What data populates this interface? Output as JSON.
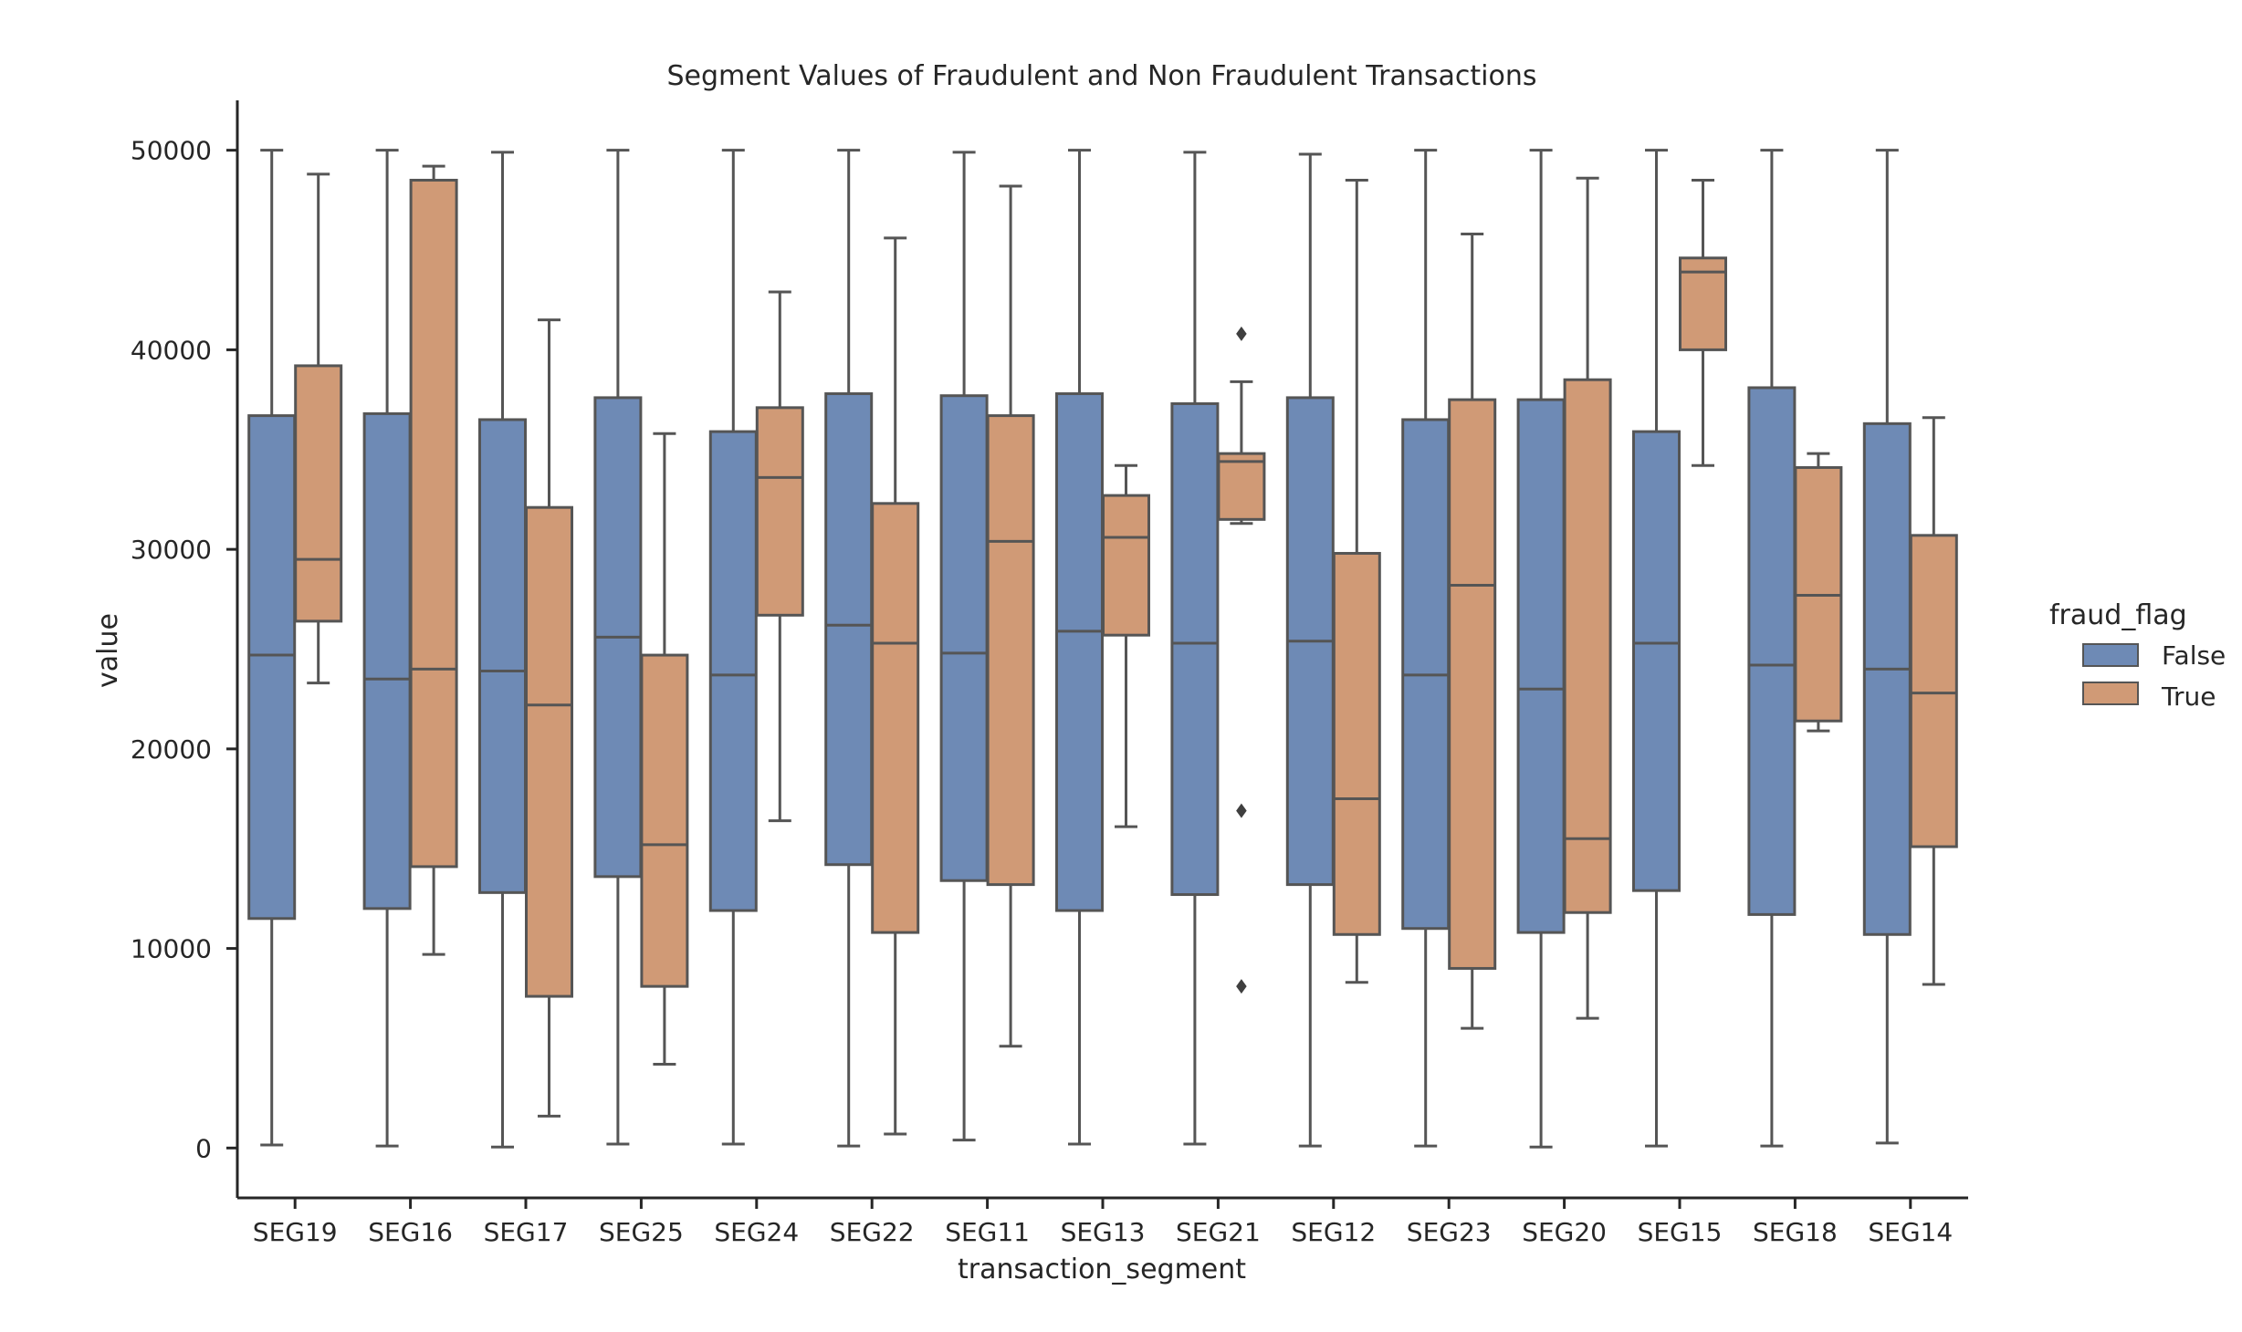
{
  "chart_data": {
    "type": "box",
    "title": "Segment Values of Fraudulent and Non Fraudulent Transactions",
    "xlabel": "transaction_segment",
    "ylabel": "value",
    "ylim": [
      -2500,
      52500
    ],
    "yticks": [
      0,
      10000,
      20000,
      30000,
      40000,
      50000
    ],
    "ytick_labels": [
      "0",
      "10000",
      "20000",
      "30000",
      "40000",
      "50000"
    ],
    "grid": false,
    "legend": {
      "title": "fraud_flag",
      "placement": "center-right"
    },
    "categories": [
      "SEG19",
      "SEG16",
      "SEG17",
      "SEG25",
      "SEG24",
      "SEG22",
      "SEG11",
      "SEG13",
      "SEG21",
      "SEG12",
      "SEG23",
      "SEG20",
      "SEG15",
      "SEG18",
      "SEG14"
    ],
    "series": [
      {
        "name": "False",
        "color": "#6e8ab5",
        "boxes": [
          {
            "min": 150,
            "q1": 11500,
            "median": 24700,
            "q3": 36700,
            "max": 50000,
            "outliers": []
          },
          {
            "min": 100,
            "q1": 12000,
            "median": 23500,
            "q3": 36800,
            "max": 50000,
            "outliers": []
          },
          {
            "min": 50,
            "q1": 12800,
            "median": 23900,
            "q3": 36500,
            "max": 49900,
            "outliers": []
          },
          {
            "min": 200,
            "q1": 13600,
            "median": 25600,
            "q3": 37600,
            "max": 50000,
            "outliers": []
          },
          {
            "min": 200,
            "q1": 11900,
            "median": 23700,
            "q3": 35900,
            "max": 50000,
            "outliers": []
          },
          {
            "min": 100,
            "q1": 14200,
            "median": 26200,
            "q3": 37800,
            "max": 50000,
            "outliers": []
          },
          {
            "min": 400,
            "q1": 13400,
            "median": 24800,
            "q3": 37700,
            "max": 49900,
            "outliers": []
          },
          {
            "min": 200,
            "q1": 11900,
            "median": 25900,
            "q3": 37800,
            "max": 50000,
            "outliers": []
          },
          {
            "min": 200,
            "q1": 12700,
            "median": 25300,
            "q3": 37300,
            "max": 49900,
            "outliers": []
          },
          {
            "min": 100,
            "q1": 13200,
            "median": 25400,
            "q3": 37600,
            "max": 49800,
            "outliers": []
          },
          {
            "min": 100,
            "q1": 11000,
            "median": 23700,
            "q3": 36500,
            "max": 50000,
            "outliers": []
          },
          {
            "min": 50,
            "q1": 10800,
            "median": 23000,
            "q3": 37500,
            "max": 50000,
            "outliers": []
          },
          {
            "min": 100,
            "q1": 12900,
            "median": 25300,
            "q3": 35900,
            "max": 50000,
            "outliers": []
          },
          {
            "min": 100,
            "q1": 11700,
            "median": 24200,
            "q3": 38100,
            "max": 50000,
            "outliers": []
          },
          {
            "min": 250,
            "q1": 10700,
            "median": 24000,
            "q3": 36300,
            "max": 50000,
            "outliers": []
          }
        ]
      },
      {
        "name": "True",
        "color": "#d09a76",
        "boxes": [
          {
            "min": 23300,
            "q1": 26400,
            "median": 29500,
            "q3": 39200,
            "max": 48800,
            "outliers": []
          },
          {
            "min": 9700,
            "q1": 14100,
            "median": 24000,
            "q3": 48500,
            "max": 49200,
            "outliers": []
          },
          {
            "min": 1600,
            "q1": 7600,
            "median": 22200,
            "q3": 32100,
            "max": 41500,
            "outliers": []
          },
          {
            "min": 4200,
            "q1": 8100,
            "median": 15200,
            "q3": 24700,
            "max": 35800,
            "outliers": []
          },
          {
            "min": 16400,
            "q1": 26700,
            "median": 33600,
            "q3": 37100,
            "max": 42900,
            "outliers": []
          },
          {
            "min": 700,
            "q1": 10800,
            "median": 25300,
            "q3": 32300,
            "max": 45600,
            "outliers": []
          },
          {
            "min": 5100,
            "q1": 13200,
            "median": 30400,
            "q3": 36700,
            "max": 48200,
            "outliers": []
          },
          {
            "min": 16100,
            "q1": 25700,
            "median": 30600,
            "q3": 32700,
            "max": 34200,
            "outliers": []
          },
          {
            "min": 31300,
            "q1": 31500,
            "median": 34400,
            "q3": 34800,
            "max": 38400,
            "outliers": [
              40800,
              16900,
              8100
            ]
          },
          {
            "min": 8300,
            "q1": 10700,
            "median": 17500,
            "q3": 29800,
            "max": 48500,
            "outliers": []
          },
          {
            "min": 6000,
            "q1": 9000,
            "median": 28200,
            "q3": 37500,
            "max": 45800,
            "outliers": []
          },
          {
            "min": 6500,
            "q1": 11800,
            "median": 15500,
            "q3": 38500,
            "max": 48600,
            "outliers": []
          },
          {
            "min": 34200,
            "q1": 40000,
            "median": 43900,
            "q3": 44600,
            "max": 48500,
            "outliers": []
          },
          {
            "min": 20900,
            "q1": 21400,
            "median": 27700,
            "q3": 34100,
            "max": 34800,
            "outliers": []
          },
          {
            "min": 8200,
            "q1": 15100,
            "median": 22800,
            "q3": 30700,
            "max": 36600,
            "outliers": []
          }
        ]
      }
    ]
  }
}
